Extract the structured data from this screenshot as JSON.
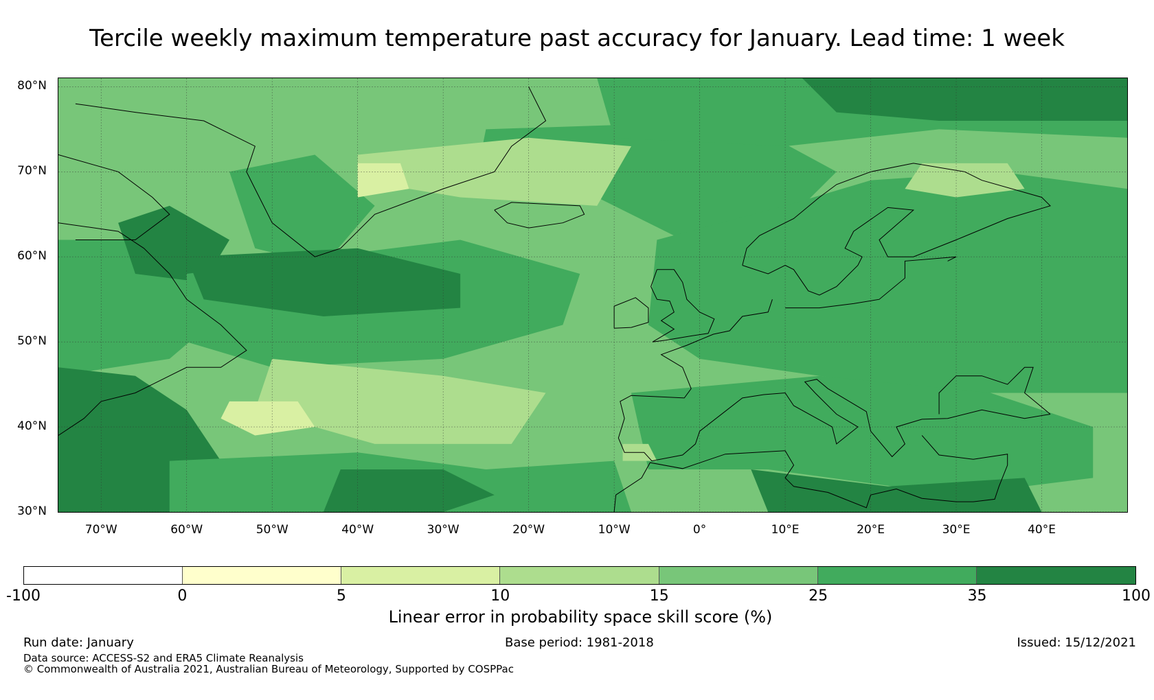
{
  "title": "Tercile weekly maximum temperature past accuracy for January. Lead time: 1 week",
  "map": {
    "projection": "PlateCarree",
    "lon_range": [
      -75,
      50
    ],
    "lat_range": [
      30,
      81
    ],
    "lat_labels": [
      "80°N",
      "70°N",
      "60°N",
      "50°N",
      "40°N",
      "30°N"
    ],
    "lon_labels": [
      "70°W",
      "60°W",
      "50°W",
      "40°W",
      "30°W",
      "20°W",
      "10°W",
      "0°",
      "10°E",
      "20°E",
      "30°E",
      "40°E"
    ],
    "regions": [
      {
        "name": "base",
        "value": 20
      },
      {
        "name": "nw-atlantic-low",
        "value": 30
      },
      {
        "name": "labrador",
        "value": 40
      },
      {
        "name": "greenland-south",
        "value": 30
      },
      {
        "name": "north-atlantic-mid",
        "value": 30
      },
      {
        "name": "n-atlantic-strong",
        "value": 40
      },
      {
        "name": "norwegian-sea",
        "value": 30
      },
      {
        "name": "svalbard-arctic",
        "value": 30
      },
      {
        "name": "arctic-east-strong",
        "value": 40
      },
      {
        "name": "baltic-strong",
        "value": 40
      },
      {
        "name": "europe-east",
        "value": 30
      },
      {
        "name": "mediterranean",
        "value": 30
      },
      {
        "name": "north-africa-strong",
        "value": 40
      },
      {
        "name": "us-east-strong",
        "value": 40
      },
      {
        "name": "mid-atlantic-south",
        "value": 30
      },
      {
        "name": "subtropic-strong",
        "value": 40
      },
      {
        "name": "azores-weak",
        "value": 12
      },
      {
        "name": "greenland-sea-weak",
        "value": 12
      },
      {
        "name": "iceland-weak",
        "value": 7
      },
      {
        "name": "lapland-weak",
        "value": 12
      },
      {
        "name": "atlantic-40n-weak",
        "value": 7
      },
      {
        "name": "iberia-weak",
        "value": 12
      }
    ]
  },
  "colorbar": {
    "label": "Linear error in probability space skill score (%)",
    "bins": [
      {
        "from": -100,
        "to": 0,
        "color": "#ffffff"
      },
      {
        "from": 0,
        "to": 5,
        "color": "#ffffcc"
      },
      {
        "from": 5,
        "to": 10,
        "color": "#d9f0a3"
      },
      {
        "from": 10,
        "to": 15,
        "color": "#addd8e"
      },
      {
        "from": 15,
        "to": 25,
        "color": "#78c679"
      },
      {
        "from": 25,
        "to": 35,
        "color": "#41ab5d"
      },
      {
        "from": 35,
        "to": 100,
        "color": "#238443"
      }
    ],
    "ticks": [
      "-100",
      "0",
      "5",
      "10",
      "15",
      "25",
      "35",
      "100"
    ]
  },
  "footer": {
    "run_date": "Run date: January",
    "base_period": "Base period: 1981-2018",
    "issued": "Issued: 15/12/2021",
    "data_source": "Data source: ACCESS-S2 and ERA5 Climate Reanalysis",
    "copyright": "© Commonwealth of Australia 2021, Australian Bureau of Meteorology, Supported by COSPPac"
  }
}
